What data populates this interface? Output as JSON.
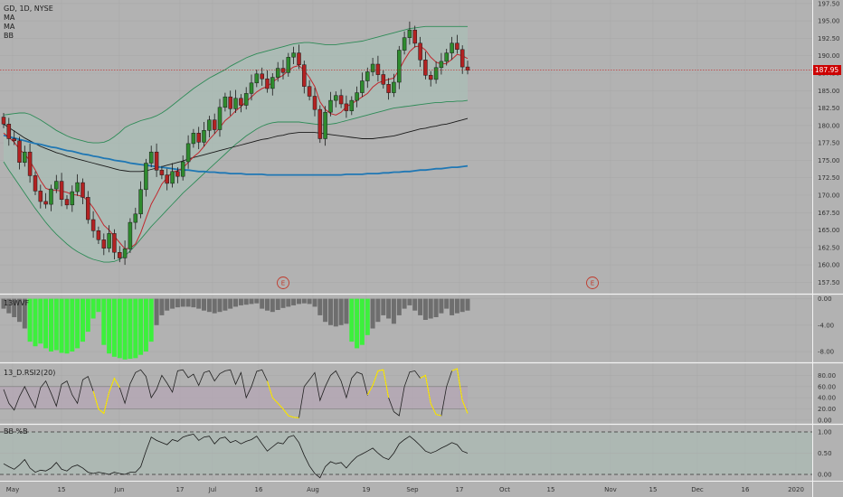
{
  "symbol_header": "GD, 1D, NYSE",
  "main_legend": [
    "MA",
    "MA",
    "BB"
  ],
  "pane_labels": {
    "wvf": "13WVF",
    "rsi": "13_D.RSI2(20)",
    "bb": "BB %B"
  },
  "price_label": "187.95",
  "earnings_marker": "E",
  "colors": {
    "background": "#b2b2b2",
    "grid": "#a9a9a9",
    "up": "#2e8b2e",
    "down": "#b22222",
    "ma_fast": "#c1272d",
    "ma_slow": "#1f77b4",
    "bb_band": "#2e8b57",
    "bb_fill": "#a9bdb5",
    "wvf_green": "#3cf03c",
    "wvf_gray": "#6e6e6e",
    "rsi_line": "#222222",
    "rsi_low": "#ffea00",
    "rsi_band": "#b5a3b5",
    "price_line": "#cc0000"
  },
  "chart_data": [
    {
      "type": "candlestick",
      "title": "GD, 1D, NYSE",
      "y_axis_side": "right",
      "ylim": [
        156,
        198
      ],
      "y_ticks": [
        157.5,
        160.0,
        162.5,
        165.0,
        167.5,
        170.0,
        172.5,
        175.0,
        177.5,
        180.0,
        182.5,
        185.0,
        187.5,
        190.0,
        192.5,
        195.0,
        197.5
      ],
      "y_tick_labels": [
        "157.50",
        "160.00",
        "162.50",
        "165.00",
        "167.50",
        "170.00",
        "172.50",
        "175.00",
        "177.50",
        "180.00",
        "182.50",
        "185.00",
        "187.50",
        "190.00",
        "192.50",
        "195.00",
        "197.50"
      ],
      "x_tick_labels": [
        "May",
        "15",
        "Jun",
        "17",
        "Jul",
        "16",
        "Aug",
        "19",
        "Sep",
        "17",
        "Oct",
        "15",
        "Nov",
        "15",
        "Dec",
        "16",
        "2020"
      ],
      "last_price": 187.95,
      "close": [
        180.2,
        178.1,
        177.8,
        174.7,
        176.2,
        172.8,
        170.6,
        169.1,
        168.7,
        170.9,
        172.0,
        169.4,
        168.6,
        170.5,
        171.8,
        169.7,
        166.5,
        164.9,
        163.6,
        162.4,
        164.5,
        161.8,
        161.0,
        162.3,
        166.1,
        167.3,
        170.8,
        174.6,
        176.2,
        173.6,
        172.9,
        171.7,
        173.4,
        172.7,
        174.8,
        177.4,
        178.9,
        177.6,
        179.3,
        180.8,
        179.4,
        182.6,
        184.1,
        182.4,
        183.9,
        182.9,
        184.6,
        186.1,
        187.4,
        186.7,
        185.3,
        186.9,
        188.2,
        187.6,
        189.8,
        190.4,
        188.7,
        185.6,
        184.2,
        182.3,
        178.1,
        181.9,
        183.6,
        184.3,
        183.1,
        182.1,
        183.6,
        184.7,
        186.4,
        187.7,
        188.8,
        187.3,
        185.9,
        184.7,
        186.2,
        190.8,
        192.6,
        193.7,
        191.8,
        189.4,
        187.2,
        186.6,
        188.3,
        189.2,
        190.4,
        191.8,
        190.9,
        188.4,
        187.95
      ],
      "ma_fast": [
        178.9,
        178.3,
        177.6,
        176.6,
        175.9,
        174.9,
        173.6,
        172.1,
        171.0,
        170.7,
        170.7,
        170.6,
        170.4,
        170.1,
        170.0,
        169.8,
        169.2,
        168.2,
        167.0,
        165.7,
        165.0,
        164.1,
        163.2,
        162.3,
        162.4,
        163.0,
        164.6,
        166.7,
        168.7,
        170.1,
        171.6,
        172.5,
        173.3,
        173.5,
        173.9,
        174.7,
        175.5,
        176.1,
        177.0,
        178.0,
        178.8,
        179.7,
        180.7,
        181.3,
        182.1,
        182.7,
        183.4,
        184.1,
        184.8,
        185.3,
        185.6,
        186.2,
        186.8,
        187.2,
        187.9,
        188.4,
        188.6,
        187.9,
        186.9,
        185.6,
        183.4,
        182.3,
        181.7,
        181.5,
        181.9,
        182.7,
        183.1,
        183.6,
        184.1,
        184.6,
        185.5,
        186.1,
        186.4,
        186.6,
        186.8,
        188.0,
        189.4,
        190.6,
        191.3,
        191.4,
        190.8,
        189.8,
        189.1,
        188.8,
        188.9,
        189.5,
        190.2,
        190.0,
        189.6
      ],
      "ma_slow": [
        180.2,
        179.7,
        179.2,
        178.7,
        178.2,
        177.8,
        177.4,
        177.0,
        176.7,
        176.4,
        176.1,
        175.9,
        175.6,
        175.4,
        175.2,
        175.0,
        174.8,
        174.6,
        174.4,
        174.2,
        174.0,
        173.8,
        173.6,
        173.5,
        173.4,
        173.4,
        173.4,
        173.5,
        173.7,
        173.9,
        174.1,
        174.3,
        174.5,
        174.7,
        174.9,
        175.2,
        175.4,
        175.6,
        175.8,
        176.0,
        176.2,
        176.4,
        176.6,
        176.8,
        177.0,
        177.2,
        177.4,
        177.6,
        177.8,
        178.0,
        178.1,
        178.3,
        178.5,
        178.6,
        178.8,
        178.9,
        179.0,
        179.0,
        179.0,
        179.0,
        178.9,
        178.8,
        178.7,
        178.6,
        178.5,
        178.4,
        178.3,
        178.2,
        178.1,
        178.1,
        178.1,
        178.2,
        178.3,
        178.4,
        178.5,
        178.7,
        178.9,
        179.1,
        179.3,
        179.5,
        179.6,
        179.8,
        179.9,
        180.1,
        180.2,
        180.4,
        180.6,
        180.8,
        181.0
      ],
      "ma_long": [
        178.6,
        178.4,
        178.2,
        178.0,
        177.8,
        177.6,
        177.4,
        177.3,
        177.1,
        176.9,
        176.8,
        176.6,
        176.4,
        176.3,
        176.1,
        175.9,
        175.8,
        175.6,
        175.5,
        175.3,
        175.2,
        175.0,
        174.9,
        174.8,
        174.6,
        174.5,
        174.4,
        174.3,
        174.2,
        174.1,
        174.0,
        173.9,
        173.8,
        173.7,
        173.6,
        173.6,
        173.5,
        173.4,
        173.4,
        173.3,
        173.3,
        173.2,
        173.2,
        173.1,
        173.1,
        173.1,
        173.0,
        173.0,
        173.0,
        173.0,
        172.9,
        172.9,
        172.9,
        172.9,
        172.9,
        172.9,
        172.9,
        172.9,
        172.9,
        172.9,
        172.9,
        172.9,
        172.9,
        172.9,
        172.9,
        173.0,
        173.0,
        173.0,
        173.0,
        173.1,
        173.1,
        173.1,
        173.2,
        173.2,
        173.3,
        173.3,
        173.4,
        173.4,
        173.5,
        173.6,
        173.6,
        173.7,
        173.8,
        173.8,
        173.9,
        174.0,
        174.0,
        174.1,
        174.2
      ],
      "bb_upper": [
        181.5,
        181.6,
        181.7,
        181.8,
        181.8,
        181.6,
        181.2,
        180.8,
        180.3,
        179.8,
        179.3,
        178.9,
        178.5,
        178.2,
        178.0,
        177.8,
        177.6,
        177.5,
        177.5,
        177.6,
        177.9,
        178.4,
        179.0,
        179.7,
        180.1,
        180.4,
        180.7,
        180.9,
        181.1,
        181.4,
        181.8,
        182.3,
        182.9,
        183.5,
        184.1,
        184.7,
        185.3,
        185.8,
        186.3,
        186.8,
        187.2,
        187.6,
        188.0,
        188.5,
        188.9,
        189.3,
        189.7,
        190.0,
        190.3,
        190.5,
        190.7,
        190.9,
        191.1,
        191.3,
        191.5,
        191.7,
        191.8,
        191.9,
        191.9,
        191.8,
        191.7,
        191.6,
        191.6,
        191.6,
        191.7,
        191.8,
        191.9,
        192.0,
        192.1,
        192.3,
        192.5,
        192.7,
        192.9,
        193.1,
        193.3,
        193.5,
        193.7,
        193.9,
        194.0,
        194.1,
        194.2,
        194.2,
        194.2,
        194.2,
        194.2,
        194.2,
        194.2,
        194.2,
        194.2
      ],
      "bb_lower": [
        174.8,
        173.6,
        172.5,
        171.4,
        170.3,
        169.2,
        168.1,
        167.1,
        166.1,
        165.2,
        164.4,
        163.7,
        163.0,
        162.4,
        161.9,
        161.5,
        161.1,
        160.8,
        160.6,
        160.4,
        160.4,
        160.5,
        160.8,
        161.3,
        162.0,
        162.8,
        163.7,
        164.6,
        165.5,
        166.3,
        167.1,
        167.9,
        168.7,
        169.5,
        170.3,
        171.0,
        171.7,
        172.4,
        173.1,
        173.8,
        174.5,
        175.2,
        175.9,
        176.6,
        177.3,
        177.9,
        178.5,
        179.0,
        179.5,
        179.9,
        180.2,
        180.4,
        180.5,
        180.5,
        180.5,
        180.5,
        180.5,
        180.4,
        180.3,
        180.2,
        180.1,
        180.1,
        180.2,
        180.3,
        180.5,
        180.7,
        180.9,
        181.1,
        181.3,
        181.5,
        181.7,
        181.9,
        182.1,
        182.3,
        182.5,
        182.6,
        182.7,
        182.8,
        182.9,
        183.0,
        183.1,
        183.2,
        183.3,
        183.3,
        183.4,
        183.4,
        183.5,
        183.5,
        183.6
      ],
      "earnings_x_labels": [
        "Jul",
        "Oct"
      ]
    },
    {
      "type": "bar",
      "title": "13WVF",
      "ylim": [
        -9.5,
        0.5
      ],
      "y_ticks": [
        0,
        -4,
        -8
      ],
      "y_tick_labels": [
        "0.00",
        "-4.00",
        "-8.00"
      ],
      "values": [
        -1.5,
        -2.2,
        -2.8,
        -3.5,
        -4.5,
        -6.5,
        -7.2,
        -6.8,
        -7.5,
        -8.0,
        -7.8,
        -8.2,
        -8.3,
        -8.0,
        -7.5,
        -6.5,
        -5.0,
        -3.0,
        -2.0,
        -7.0,
        -8.3,
        -8.8,
        -9.0,
        -9.2,
        -9.1,
        -9.0,
        -8.5,
        -8.0,
        -6.5,
        -4.0,
        -2.5,
        -1.8,
        -1.5,
        -1.3,
        -1.2,
        -1.2,
        -1.3,
        -1.5,
        -1.8,
        -2.0,
        -2.2,
        -2.0,
        -1.8,
        -1.5,
        -1.2,
        -1.0,
        -0.9,
        -0.8,
        -0.7,
        -1.5,
        -1.8,
        -2.0,
        -1.7,
        -1.4,
        -1.2,
        -1.0,
        -0.8,
        -0.7,
        -0.8,
        -1.2,
        -2.5,
        -3.5,
        -4.0,
        -4.2,
        -4.0,
        -3.8,
        -6.5,
        -7.5,
        -7.0,
        -5.5,
        -4.5,
        -3.5,
        -2.5,
        -3.0,
        -3.8,
        -2.5,
        -1.5,
        -1.0,
        -1.8,
        -2.5,
        -3.2,
        -3.0,
        -2.8,
        -2.2,
        -1.5,
        -2.5,
        -2.2,
        -2.0,
        -1.8
      ],
      "highlighted": [
        false,
        false,
        false,
        false,
        false,
        true,
        true,
        true,
        true,
        true,
        true,
        true,
        true,
        true,
        true,
        true,
        true,
        true,
        true,
        true,
        true,
        true,
        true,
        true,
        true,
        true,
        true,
        true,
        true,
        false,
        false,
        false,
        false,
        false,
        false,
        false,
        false,
        false,
        false,
        false,
        false,
        false,
        false,
        false,
        false,
        false,
        false,
        false,
        false,
        false,
        false,
        false,
        false,
        false,
        false,
        false,
        false,
        false,
        false,
        false,
        false,
        false,
        false,
        false,
        false,
        false,
        true,
        true,
        true,
        true,
        false,
        false,
        false,
        false,
        false,
        false,
        false,
        false,
        false,
        false,
        false,
        false,
        false,
        false,
        false,
        false,
        false,
        false,
        false
      ]
    },
    {
      "type": "line",
      "title": "13_D.RSI2(20)",
      "ylim": [
        -5,
        100
      ],
      "y_ticks": [
        0,
        20,
        40,
        60,
        80
      ],
      "y_tick_labels": [
        "0.00",
        "20.00",
        "40.00",
        "60.00",
        "80.00"
      ],
      "band": [
        20,
        60
      ],
      "values": [
        55,
        30,
        18,
        42,
        60,
        40,
        22,
        58,
        70,
        48,
        25,
        64,
        70,
        45,
        30,
        72,
        78,
        52,
        20,
        12,
        50,
        75,
        58,
        30,
        65,
        85,
        90,
        78,
        40,
        55,
        80,
        66,
        50,
        88,
        90,
        76,
        82,
        62,
        85,
        88,
        70,
        83,
        88,
        90,
        64,
        85,
        40,
        60,
        87,
        90,
        70,
        40,
        30,
        20,
        8,
        5,
        4,
        60,
        72,
        85,
        35,
        60,
        80,
        88,
        70,
        40,
        75,
        86,
        82,
        45,
        62,
        88,
        90,
        40,
        15,
        8,
        60,
        86,
        88,
        75,
        80,
        30,
        10,
        8,
        60,
        88,
        92,
        35,
        12
      ],
      "low_segments": [
        [
          17,
          22
        ],
        [
          50,
          56
        ],
        [
          69,
          73
        ],
        [
          79,
          83
        ],
        [
          85,
          88
        ]
      ]
    },
    {
      "type": "line",
      "title": "BB %B",
      "ylim": [
        -0.15,
        1.15
      ],
      "y_ticks": [
        0,
        0.5,
        1
      ],
      "y_tick_labels": [
        "0.00",
        "0.50",
        "1.00"
      ],
      "band": [
        0,
        1
      ],
      "values": [
        0.25,
        0.18,
        0.12,
        0.22,
        0.35,
        0.15,
        0.05,
        0.1,
        0.08,
        0.15,
        0.28,
        0.12,
        0.08,
        0.18,
        0.22,
        0.15,
        0.05,
        0.02,
        0.05,
        0.03,
        0.0,
        0.05,
        0.02,
        0.0,
        0.05,
        0.05,
        0.18,
        0.55,
        0.88,
        0.8,
        0.75,
        0.7,
        0.82,
        0.78,
        0.88,
        0.92,
        0.95,
        0.8,
        0.88,
        0.9,
        0.72,
        0.85,
        0.88,
        0.75,
        0.8,
        0.72,
        0.78,
        0.82,
        0.9,
        0.72,
        0.55,
        0.65,
        0.75,
        0.72,
        0.88,
        0.92,
        0.75,
        0.45,
        0.2,
        0.02,
        -0.08,
        0.18,
        0.3,
        0.25,
        0.28,
        0.15,
        0.3,
        0.42,
        0.48,
        0.55,
        0.62,
        0.5,
        0.4,
        0.35,
        0.5,
        0.72,
        0.82,
        0.9,
        0.8,
        0.68,
        0.55,
        0.5,
        0.55,
        0.62,
        0.68,
        0.75,
        0.7,
        0.55,
        0.5
      ]
    }
  ]
}
